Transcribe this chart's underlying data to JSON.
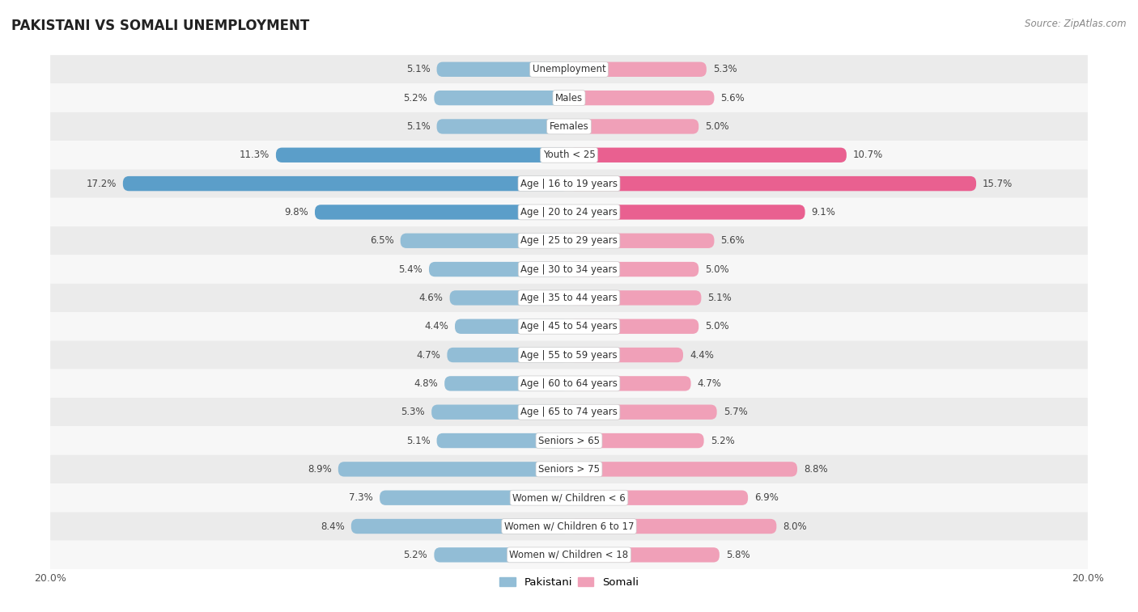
{
  "title": "PAKISTANI VS SOMALI UNEMPLOYMENT",
  "source": "Source: ZipAtlas.com",
  "categories": [
    "Unemployment",
    "Males",
    "Females",
    "Youth < 25",
    "Age | 16 to 19 years",
    "Age | 20 to 24 years",
    "Age | 25 to 29 years",
    "Age | 30 to 34 years",
    "Age | 35 to 44 years",
    "Age | 45 to 54 years",
    "Age | 55 to 59 years",
    "Age | 60 to 64 years",
    "Age | 65 to 74 years",
    "Seniors > 65",
    "Seniors > 75",
    "Women w/ Children < 6",
    "Women w/ Children 6 to 17",
    "Women w/ Children < 18"
  ],
  "pakistani": [
    5.1,
    5.2,
    5.1,
    11.3,
    17.2,
    9.8,
    6.5,
    5.4,
    4.6,
    4.4,
    4.7,
    4.8,
    5.3,
    5.1,
    8.9,
    7.3,
    8.4,
    5.2
  ],
  "somali": [
    5.3,
    5.6,
    5.0,
    10.7,
    15.7,
    9.1,
    5.6,
    5.0,
    5.1,
    5.0,
    4.4,
    4.7,
    5.7,
    5.2,
    8.8,
    6.9,
    8.0,
    5.8
  ],
  "pakistani_color": "#92bdd6",
  "somali_color": "#f0a0b8",
  "highlight_pakistani_color": "#5b9ec9",
  "highlight_somali_color": "#e96090",
  "row_bg_odd": "#ebebeb",
  "row_bg_even": "#f7f7f7",
  "max_val": 20.0,
  "label_fontsize": 8.5,
  "title_fontsize": 12,
  "source_fontsize": 8.5,
  "bar_height": 0.52,
  "legend_pakistani": "Pakistani",
  "legend_somali": "Somali"
}
